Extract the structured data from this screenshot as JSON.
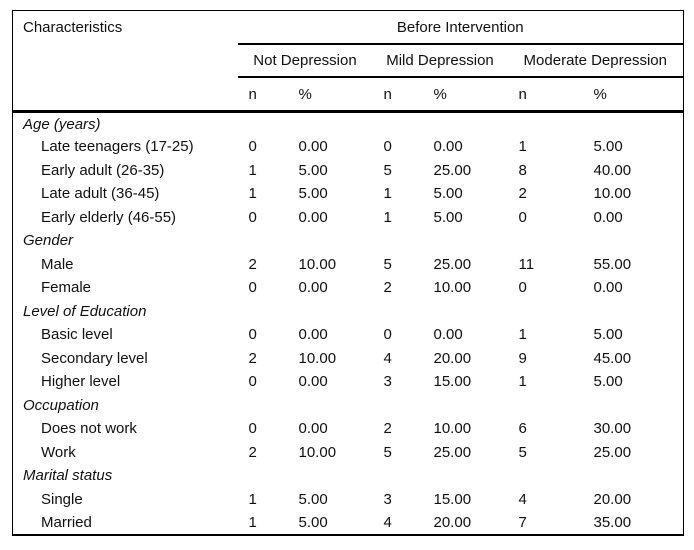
{
  "table": {
    "col1_header": "Characteristics",
    "span_header": "Before Intervention",
    "groups": [
      "Not Depression",
      "Mild Depression",
      "Moderate Depression"
    ],
    "subheaders": [
      "n",
      "%",
      "n",
      "%",
      "n",
      "%"
    ],
    "sections": [
      {
        "label": "Age (years)",
        "rows": [
          {
            "label": "Late teenagers (17-25)",
            "values": [
              "0",
              "0.00",
              "0",
              "0.00",
              "1",
              "5.00"
            ]
          },
          {
            "label": "Early adult (26-35)",
            "values": [
              "1",
              "5.00",
              "5",
              "25.00",
              "8",
              "40.00"
            ]
          },
          {
            "label": "Late adult (36-45)",
            "values": [
              "1",
              "5.00",
              "1",
              "5.00",
              "2",
              "10.00"
            ]
          },
          {
            "label": "Early elderly (46-55)",
            "values": [
              "0",
              "0.00",
              "1",
              "5.00",
              "0",
              "0.00"
            ]
          }
        ]
      },
      {
        "label": "Gender",
        "rows": [
          {
            "label": "Male",
            "values": [
              "2",
              "10.00",
              "5",
              "25.00",
              "11",
              "55.00"
            ]
          },
          {
            "label": "Female",
            "values": [
              "0",
              "0.00",
              "2",
              "10.00",
              "0",
              "0.00"
            ]
          }
        ]
      },
      {
        "label": "Level of Education",
        "rows": [
          {
            "label": "Basic level",
            "values": [
              "0",
              "0.00",
              "0",
              "0.00",
              "1",
              "5.00"
            ]
          },
          {
            "label": "Secondary level",
            "values": [
              "2",
              "10.00",
              "4",
              "20.00",
              "9",
              "45.00"
            ]
          },
          {
            "label": "Higher level",
            "values": [
              "0",
              "0.00",
              "3",
              "15.00",
              "1",
              "5.00"
            ]
          }
        ]
      },
      {
        "label": "Occupation",
        "rows": [
          {
            "label": "Does not work",
            "values": [
              "0",
              "0.00",
              "2",
              "10.00",
              "6",
              "30.00"
            ]
          },
          {
            "label": "Work",
            "values": [
              "2",
              "10.00",
              "5",
              "25.00",
              "5",
              "25.00"
            ]
          }
        ]
      },
      {
        "label": "Marital status",
        "rows": [
          {
            "label": "Single",
            "values": [
              "1",
              "5.00",
              "3",
              "15.00",
              "4",
              "20.00"
            ]
          },
          {
            "label": "Married",
            "values": [
              "1",
              "5.00",
              "4",
              "20.00",
              "7",
              "35.00"
            ]
          }
        ]
      }
    ]
  },
  "colors": {
    "text": "#111111",
    "rule": "#000000",
    "background": "#ffffff"
  }
}
